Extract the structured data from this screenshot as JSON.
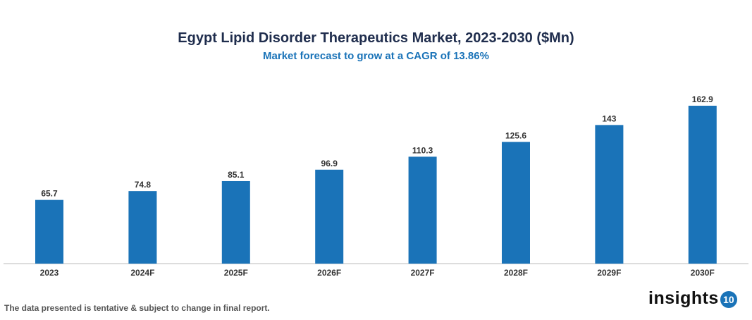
{
  "chart_data": {
    "type": "bar",
    "title": "Egypt Lipid Disorder Therapeutics Market, 2023-2030 ($Mn)",
    "subtitle": "Market forecast to grow at a CAGR of 13.86%",
    "categories": [
      "2023",
      "2024F",
      "2025F",
      "2026F",
      "2027F",
      "2028F",
      "2029F",
      "2030F"
    ],
    "values": [
      65.7,
      74.8,
      85.1,
      96.9,
      110.3,
      125.6,
      143,
      162.9
    ],
    "xlabel": "",
    "ylabel": "",
    "ylim": [
      0,
      162.9
    ],
    "grid": false,
    "data_labels": true,
    "bar_color": "#1a73b8"
  },
  "footer": {
    "note": "The data presented is tentative & subject to change in final report."
  },
  "logo": {
    "text": "insights",
    "badge": "10"
  }
}
